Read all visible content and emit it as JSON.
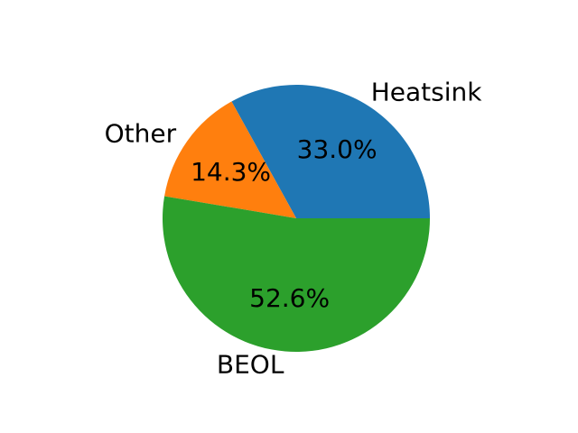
{
  "chart_data": {
    "type": "pie",
    "title": "",
    "slices": [
      {
        "label": "Heatsink",
        "value": 33.0,
        "pct_label": "33.0%",
        "color": "#1f77b4"
      },
      {
        "label": "Other",
        "value": 14.3,
        "pct_label": "14.3%",
        "color": "#ff7f0e"
      },
      {
        "label": "BEOL",
        "value": 52.6,
        "pct_label": "52.6%",
        "color": "#2ca02c"
      }
    ],
    "start_angle_deg": 0,
    "direction": "counterclockwise"
  }
}
